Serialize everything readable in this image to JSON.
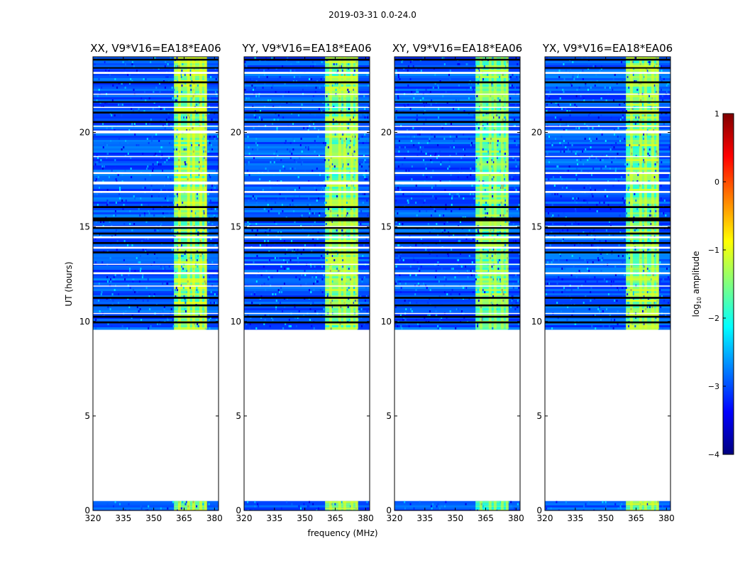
{
  "chart_data": {
    "type": "heatmap",
    "title": "2019-03-31 0.0-24.0",
    "xlabel": "frequency (MHz)",
    "ylabel": "UT (hours)",
    "xlim": [
      320,
      382
    ],
    "ylim": [
      0,
      24
    ],
    "xticks": [
      "320",
      "335",
      "350",
      "365",
      "380"
    ],
    "yticks": [
      "0",
      "5",
      "10",
      "15",
      "20"
    ],
    "panels": [
      {
        "title": "XX, V9*V16=EA18*EA06",
        "pol": "XX",
        "band_intensity": -1.3
      },
      {
        "title": "YY, V9*V16=EA18*EA06",
        "pol": "YY",
        "band_intensity": -1.4
      },
      {
        "title": "XY, V9*V16=EA18*EA06",
        "pol": "XY",
        "band_intensity": -1.5
      },
      {
        "title": "YX, V9*V16=EA18*EA06",
        "pol": "YX",
        "band_intensity": -1.4
      }
    ],
    "data_coverage_hours": [
      [
        0.0,
        0.5
      ],
      [
        9.6,
        24.0
      ]
    ],
    "rfi_band_mhz": [
      360,
      376
    ],
    "colorbar": {
      "label": "amplitude",
      "label_prefix": "log",
      "label_sub": "10",
      "range": [
        -4,
        1
      ],
      "ticks": [
        "−4",
        "−3",
        "−2",
        "−1",
        "0",
        "1"
      ]
    }
  }
}
